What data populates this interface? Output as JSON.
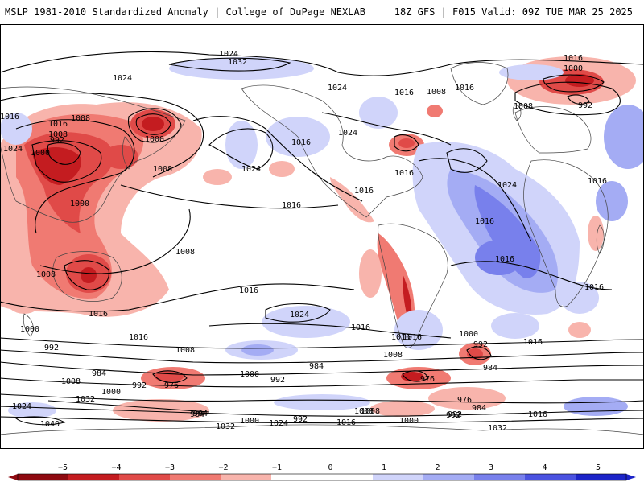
{
  "header": {
    "title": "MSLP 1981-2010 Standardized Anomaly | College of DuPage NEXLAB",
    "run": "18Z GFS | F015 Valid: 09Z TUE MAR 25 2025"
  },
  "colors": {
    "neg5": "#8e0a10",
    "neg4": "#c41c20",
    "neg3": "#e04a48",
    "neg2": "#f07a72",
    "neg1": "#f8b4ac",
    "neutral": "#ffffff",
    "pos1": "#d0d4fa",
    "pos2": "#a4acf4",
    "pos3": "#7880ec",
    "pos4": "#4a52e0",
    "pos5": "#1c24c8",
    "land": "#444444",
    "contour": "#000000"
  },
  "colorbar": {
    "ticks": [
      "−5",
      "−4",
      "−3",
      "−2",
      "−1",
      "0",
      "1",
      "2",
      "3",
      "4",
      "5"
    ]
  },
  "contour_labels": [
    "1024",
    "1032",
    "1024",
    "1024",
    "1016",
    "1008",
    "1016",
    "1024",
    "1008",
    "1000",
    "992",
    "1000",
    "1008",
    "1000",
    "1024",
    "1016",
    "1016",
    "1024",
    "1016",
    "1016",
    "1016",
    "1016",
    "1008",
    "1016",
    "1016",
    "1016",
    "1016",
    "1016",
    "1000",
    "992",
    "1008",
    "1024",
    "1016",
    "1016",
    "1016",
    "1008",
    "1008",
    "1016",
    "1016",
    "1024",
    "1016",
    "1000",
    "992",
    "1008",
    "1016",
    "1000",
    "992",
    "1008",
    "984",
    "1000",
    "992",
    "984",
    "976",
    "1000",
    "992",
    "984",
    "976",
    "984",
    "992",
    "1008",
    "976",
    "1040",
    "1032",
    "1024",
    "1032",
    "1000",
    "1024",
    "992",
    "1016",
    "1008",
    "1000",
    "992",
    "1016",
    "1032",
    "984",
    "984",
    "1008"
  ]
}
